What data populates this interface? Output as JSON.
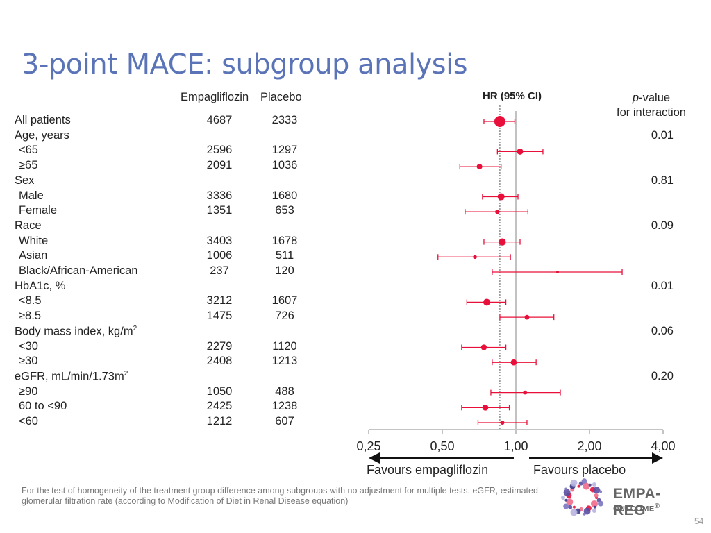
{
  "slide": {
    "title": "3-point MACE: subgroup analysis",
    "page_number": "54",
    "footnote": "For the test of homogeneity of the treatment group difference among subgroups with no adjustment for multiple tests. eGFR, estimated glomerular filtration rate (according to Modification of Diet in Renal Disease equation)"
  },
  "table": {
    "col_headers": {
      "empagliflozin": "Empagliflozin",
      "placebo": "Placebo"
    },
    "hr_header": "HR (95% CI)",
    "pvalue_header_1": "p",
    "pvalue_header_2": "-value",
    "pvalue_header_3": "for interaction"
  },
  "logo": {
    "line1": "EMPA-REG",
    "line2": "OUTCOME",
    "mark": "®"
  },
  "colors": {
    "title": "#5b74b8",
    "marker": "#e8103a",
    "axis": "#888888"
  },
  "chart_data": {
    "type": "forest",
    "x_scale": "log2",
    "xlim": [
      0.25,
      4.0
    ],
    "x_ticks": [
      "0,25",
      "0,50",
      "1,00",
      "2,00",
      "4,00"
    ],
    "x_tick_values": [
      0.25,
      0.5,
      1.0,
      2.0,
      4.0
    ],
    "reference_line": 1.0,
    "overall_hr_line": 0.86,
    "favour_left": "Favours empagliflozin",
    "favour_right": "Favours placebo",
    "rows": [
      {
        "label": "All patients",
        "sub": false,
        "empa": "4687",
        "placebo": "2333",
        "hr": 0.86,
        "lo": 0.74,
        "hi": 0.99,
        "pvalue": ""
      },
      {
        "label": "Age, years",
        "sub": false,
        "empa": "",
        "placebo": "",
        "hr": null,
        "pvalue": "0.01"
      },
      {
        "label": "<65",
        "sub": true,
        "empa": "2596",
        "placebo": "1297",
        "hr": 1.04,
        "lo": 0.84,
        "hi": 1.29,
        "pvalue": ""
      },
      {
        "label": "≥65",
        "sub": true,
        "empa": "2091",
        "placebo": "1036",
        "hr": 0.71,
        "lo": 0.59,
        "hi": 0.87,
        "pvalue": ""
      },
      {
        "label": "Sex",
        "sub": false,
        "empa": "",
        "placebo": "",
        "hr": null,
        "pvalue": "0.81"
      },
      {
        "label": "Male",
        "sub": true,
        "empa": "3336",
        "placebo": "1680",
        "hr": 0.87,
        "lo": 0.73,
        "hi": 1.02,
        "pvalue": ""
      },
      {
        "label": "Female",
        "sub": true,
        "empa": "1351",
        "placebo": "653",
        "hr": 0.84,
        "lo": 0.62,
        "hi": 1.12,
        "pvalue": ""
      },
      {
        "label": "Race",
        "sub": false,
        "empa": "",
        "placebo": "",
        "hr": null,
        "pvalue": "0.09"
      },
      {
        "label": "White",
        "sub": true,
        "empa": "3403",
        "placebo": "1678",
        "hr": 0.88,
        "lo": 0.74,
        "hi": 1.04,
        "pvalue": ""
      },
      {
        "label": "Asian",
        "sub": true,
        "empa": "1006",
        "placebo": "511",
        "hr": 0.68,
        "lo": 0.48,
        "hi": 0.95,
        "pvalue": ""
      },
      {
        "label": "Black/African-American",
        "sub": true,
        "empa": "237",
        "placebo": "120",
        "hr": 1.48,
        "lo": 0.8,
        "hi": 2.72,
        "pvalue": ""
      },
      {
        "label": "HbA1c, %",
        "sub": false,
        "empa": "",
        "placebo": "",
        "hr": null,
        "pvalue": "0.01"
      },
      {
        "label": "<8.5",
        "sub": true,
        "empa": "3212",
        "placebo": "1607",
        "hr": 0.76,
        "lo": 0.63,
        "hi": 0.91,
        "pvalue": ""
      },
      {
        "label": "≥8.5",
        "sub": true,
        "empa": "1475",
        "placebo": "726",
        "hr": 1.11,
        "lo": 0.86,
        "hi": 1.43,
        "pvalue": ""
      },
      {
        "label": "Body mass index, kg/m",
        "sup": "2",
        "sub": false,
        "empa": "",
        "placebo": "",
        "hr": null,
        "pvalue": "0.06"
      },
      {
        "label": "<30",
        "sub": true,
        "empa": "2279",
        "placebo": "1120",
        "hr": 0.74,
        "lo": 0.6,
        "hi": 0.91,
        "pvalue": ""
      },
      {
        "label": "≥30",
        "sub": true,
        "empa": "2408",
        "placebo": "1213",
        "hr": 0.98,
        "lo": 0.8,
        "hi": 1.21,
        "pvalue": ""
      },
      {
        "label": "eGFR, mL/min/1.73m",
        "sup": "2",
        "sub": false,
        "empa": "",
        "placebo": "",
        "hr": null,
        "pvalue": "0.20"
      },
      {
        "label": "≥90",
        "sub": true,
        "empa": "1050",
        "placebo": "488",
        "hr": 1.09,
        "lo": 0.79,
        "hi": 1.52,
        "pvalue": ""
      },
      {
        "label": "60 to <90",
        "sub": true,
        "empa": "2425",
        "placebo": "1238",
        "hr": 0.75,
        "lo": 0.6,
        "hi": 0.94,
        "pvalue": ""
      },
      {
        "label": "<60",
        "sub": true,
        "empa": "1212",
        "placebo": "607",
        "hr": 0.88,
        "lo": 0.7,
        "hi": 1.11,
        "pvalue": ""
      }
    ]
  }
}
